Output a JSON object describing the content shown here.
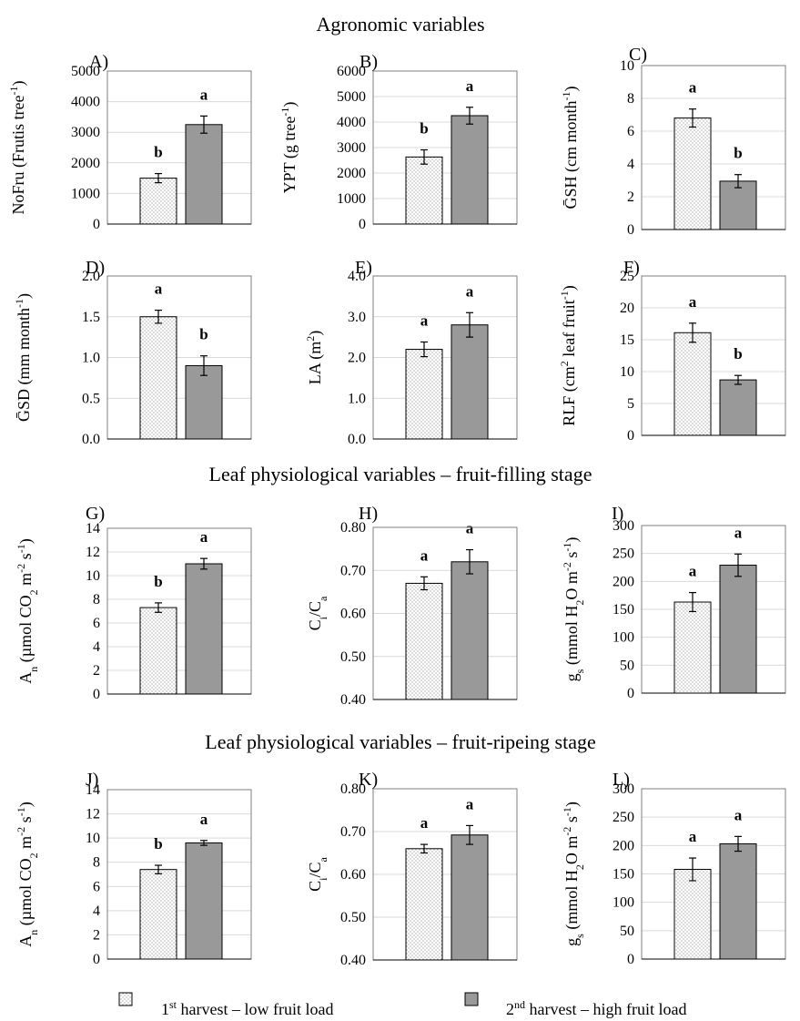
{
  "titles": {
    "agronomic": "Agronomic variables",
    "filling": "Leaf physiological variables – fruit-filling stage",
    "ripening": "Leaf physiological variables – fruit-ripeing stage"
  },
  "legend": {
    "first": {
      "sup": "st",
      "pre": "1",
      "post": " harvest  – low fruit load"
    },
    "second": {
      "sup": "nd",
      "pre": "2",
      "post": " harvest – high  fruit load"
    }
  },
  "colors": {
    "first_fill": "#ffffff",
    "second_fill": "#999999",
    "grid": "#d9d9d9"
  },
  "chart_data": [
    {
      "id": "A",
      "type": "bar",
      "letter": "A)",
      "ylabel": [
        {
          "t": "NoFru (Frutis tree"
        },
        {
          "t": "-1",
          "sup": true
        },
        {
          "t": ")"
        }
      ],
      "ylim": [
        0,
        5000
      ],
      "ticks": [
        0,
        1000,
        2000,
        3000,
        4000,
        5000
      ],
      "tick_labels": [
        "0",
        "1000",
        "2000",
        "3000",
        "4000",
        "5000"
      ],
      "series": [
        {
          "name": "1st harvest – low fruit load",
          "value": 1500,
          "error": 150,
          "letter": "b"
        },
        {
          "name": "2nd harvest – high fruit load",
          "value": 3250,
          "error": 280,
          "letter": "a"
        }
      ]
    },
    {
      "id": "B",
      "type": "bar",
      "letter": "B)",
      "ylabel": [
        {
          "t": "YPT (g tree"
        },
        {
          "t": "-1",
          "sup": true
        },
        {
          "t": ")"
        }
      ],
      "ylim": [
        0,
        6000
      ],
      "ticks": [
        0,
        1000,
        2000,
        3000,
        4000,
        5000,
        6000
      ],
      "tick_labels": [
        "0",
        "1000",
        "2000",
        "3000",
        "4000",
        "5000",
        "6000"
      ],
      "series": [
        {
          "name": "1st harvest – low fruit load",
          "value": 2630,
          "error": 280,
          "letter": "b"
        },
        {
          "name": "2nd harvest – high fruit load",
          "value": 4250,
          "error": 330,
          "letter": "a"
        }
      ]
    },
    {
      "id": "C",
      "type": "bar",
      "letter": "C)",
      "ylabel": [
        {
          "t": "ḠSH (cm month"
        },
        {
          "t": "-1",
          "sup": true
        },
        {
          "t": ")"
        }
      ],
      "ylim": [
        0,
        10
      ],
      "ticks": [
        0,
        2,
        4,
        6,
        8,
        10
      ],
      "tick_labels": [
        "0",
        "2",
        "4",
        "6",
        "8",
        "10"
      ],
      "series": [
        {
          "name": "1st harvest – low fruit load",
          "value": 6.8,
          "error": 0.55,
          "letter": "a"
        },
        {
          "name": "2nd harvest – high fruit load",
          "value": 2.95,
          "error": 0.4,
          "letter": "b"
        }
      ]
    },
    {
      "id": "D",
      "type": "bar",
      "letter": "D)",
      "ylabel": [
        {
          "t": "ḠSD (mm month"
        },
        {
          "t": "-1",
          "sup": true
        },
        {
          "t": ")"
        }
      ],
      "ylim": [
        0,
        2
      ],
      "ticks": [
        0,
        0.5,
        1,
        1.5,
        2
      ],
      "tick_labels": [
        "0.0",
        "0.5",
        "1.0",
        "1.5",
        "2.0"
      ],
      "series": [
        {
          "name": "1st harvest – low fruit load",
          "value": 1.5,
          "error": 0.08,
          "letter": "a"
        },
        {
          "name": "2nd harvest – high fruit load",
          "value": 0.9,
          "error": 0.12,
          "letter": "b"
        }
      ]
    },
    {
      "id": "E",
      "type": "bar",
      "letter": "E)",
      "ylabel": [
        {
          "t": "LA (m"
        },
        {
          "t": "2",
          "sup": true
        },
        {
          "t": ")"
        }
      ],
      "ylim": [
        0,
        4
      ],
      "ticks": [
        0,
        1,
        2,
        3,
        4
      ],
      "tick_labels": [
        "0.0",
        "1.0",
        "2.0",
        "3.0",
        "4.0"
      ],
      "series": [
        {
          "name": "1st harvest – low fruit load",
          "value": 2.2,
          "error": 0.18,
          "letter": "a"
        },
        {
          "name": "2nd harvest – high fruit load",
          "value": 2.8,
          "error": 0.3,
          "letter": "a"
        }
      ]
    },
    {
      "id": "F",
      "type": "bar",
      "letter": "F)",
      "ylabel": [
        {
          "t": "RLF (cm"
        },
        {
          "t": "2",
          "sup": true
        },
        {
          "t": " leaf fruit"
        },
        {
          "t": "-1",
          "sup": true
        },
        {
          "t": ")"
        }
      ],
      "ylim": [
        0,
        25
      ],
      "ticks": [
        0,
        5,
        10,
        15,
        20,
        25
      ],
      "tick_labels": [
        "0",
        "5",
        "10",
        "15",
        "20",
        "25"
      ],
      "series": [
        {
          "name": "1st harvest – low fruit load",
          "value": 16.1,
          "error": 1.5,
          "letter": "a"
        },
        {
          "name": "2nd harvest – high fruit load",
          "value": 8.7,
          "error": 0.7,
          "letter": "b"
        }
      ]
    },
    {
      "id": "G",
      "type": "bar",
      "letter": "G)",
      "ylabel": [
        {
          "t": "A"
        },
        {
          "t": "n",
          "sub": true
        },
        {
          "t": " (µmol CO"
        },
        {
          "t": "2",
          "sub": true
        },
        {
          "t": " m"
        },
        {
          "t": "-2",
          "sup": true
        },
        {
          "t": " s"
        },
        {
          "t": "-1",
          "sup": true
        },
        {
          "t": ")"
        }
      ],
      "ylim": [
        0,
        14
      ],
      "ticks": [
        0,
        2,
        4,
        6,
        8,
        10,
        12,
        14
      ],
      "tick_labels": [
        "0",
        "2",
        "4",
        "6",
        "8",
        "10",
        "12",
        "14"
      ],
      "series": [
        {
          "name": "1st harvest – low fruit load",
          "value": 7.3,
          "error": 0.4,
          "letter": "b"
        },
        {
          "name": "2nd harvest – high fruit load",
          "value": 11.0,
          "error": 0.45,
          "letter": "a"
        }
      ]
    },
    {
      "id": "H",
      "type": "bar",
      "letter": "H)",
      "ylabel": [
        {
          "t": "C"
        },
        {
          "t": "i",
          "sub": true
        },
        {
          "t": "/C"
        },
        {
          "t": "a",
          "sub": true
        }
      ],
      "ylim": [
        0.4,
        0.8
      ],
      "ticks": [
        0.4,
        0.5,
        0.6,
        0.7,
        0.8
      ],
      "tick_labels": [
        "0.40",
        "0.50",
        "0.60",
        "0.70",
        "0.80"
      ],
      "series": [
        {
          "name": "1st harvest – low fruit load",
          "value": 0.67,
          "error": 0.015,
          "letter": "a"
        },
        {
          "name": "2nd harvest – high fruit load",
          "value": 0.72,
          "error": 0.028,
          "letter": "a"
        }
      ]
    },
    {
      "id": "I",
      "type": "bar",
      "letter": "I)",
      "ylabel": [
        {
          "t": "g"
        },
        {
          "t": "s",
          "sub": true
        },
        {
          "t": " (mmol H"
        },
        {
          "t": "2",
          "sub": true
        },
        {
          "t": "O m"
        },
        {
          "t": "-2",
          "sup": true
        },
        {
          "t": " s"
        },
        {
          "t": "-1",
          "sup": true
        },
        {
          "t": ")"
        }
      ],
      "ylim": [
        0,
        300
      ],
      "ticks": [
        0,
        50,
        100,
        150,
        200,
        250,
        300
      ],
      "tick_labels": [
        "0",
        "50",
        "100",
        "150",
        "200",
        "250",
        "300"
      ],
      "series": [
        {
          "name": "1st harvest – low fruit load",
          "value": 163,
          "error": 17,
          "letter": "a"
        },
        {
          "name": "2nd harvest – high fruit load",
          "value": 229,
          "error": 20,
          "letter": "a"
        }
      ]
    },
    {
      "id": "J",
      "type": "bar",
      "letter": "J)",
      "ylabel": [
        {
          "t": "A"
        },
        {
          "t": "n",
          "sub": true
        },
        {
          "t": " (µmol CO"
        },
        {
          "t": "2",
          "sub": true
        },
        {
          "t": " m"
        },
        {
          "t": "-2",
          "sup": true
        },
        {
          "t": " s"
        },
        {
          "t": "-1",
          "sup": true
        },
        {
          "t": ")"
        }
      ],
      "ylim": [
        0,
        14
      ],
      "ticks": [
        0,
        2,
        4,
        6,
        8,
        10,
        12,
        14
      ],
      "tick_labels": [
        "0",
        "2",
        "4",
        "6",
        "8",
        "10",
        "12",
        "14"
      ],
      "series": [
        {
          "name": "1st harvest – low fruit load",
          "value": 7.4,
          "error": 0.35,
          "letter": "b"
        },
        {
          "name": "2nd harvest – high fruit load",
          "value": 9.6,
          "error": 0.2,
          "letter": "a"
        }
      ]
    },
    {
      "id": "K",
      "type": "bar",
      "letter": "K)",
      "ylabel": [
        {
          "t": "C"
        },
        {
          "t": "i",
          "sub": true
        },
        {
          "t": "/C"
        },
        {
          "t": "a",
          "sub": true
        }
      ],
      "ylim": [
        0.4,
        0.8
      ],
      "ticks": [
        0.4,
        0.5,
        0.6,
        0.7,
        0.8
      ],
      "tick_labels": [
        "0.40",
        "0.50",
        "0.60",
        "0.70",
        "0.80"
      ],
      "series": [
        {
          "name": "1st harvest – low fruit load",
          "value": 0.66,
          "error": 0.01,
          "letter": "a"
        },
        {
          "name": "2nd harvest – high fruit load",
          "value": 0.692,
          "error": 0.022,
          "letter": "a"
        }
      ]
    },
    {
      "id": "L",
      "type": "bar",
      "letter": "L)",
      "ylabel": [
        {
          "t": "g"
        },
        {
          "t": "s",
          "sub": true
        },
        {
          "t": " (mmol H"
        },
        {
          "t": "2",
          "sub": true
        },
        {
          "t": "O m"
        },
        {
          "t": "-2",
          "sup": true
        },
        {
          "t": " s"
        },
        {
          "t": "-1",
          "sup": true
        },
        {
          "t": ")"
        }
      ],
      "ylim": [
        0,
        300
      ],
      "ticks": [
        0,
        50,
        100,
        150,
        200,
        250,
        300
      ],
      "tick_labels": [
        "0",
        "50",
        "100",
        "150",
        "200",
        "250",
        "300"
      ],
      "series": [
        {
          "name": "1st harvest – low fruit load",
          "value": 158,
          "error": 20,
          "letter": "a"
        },
        {
          "name": "2nd harvest – high fruit load",
          "value": 203,
          "error": 13,
          "letter": "a"
        }
      ]
    }
  ]
}
